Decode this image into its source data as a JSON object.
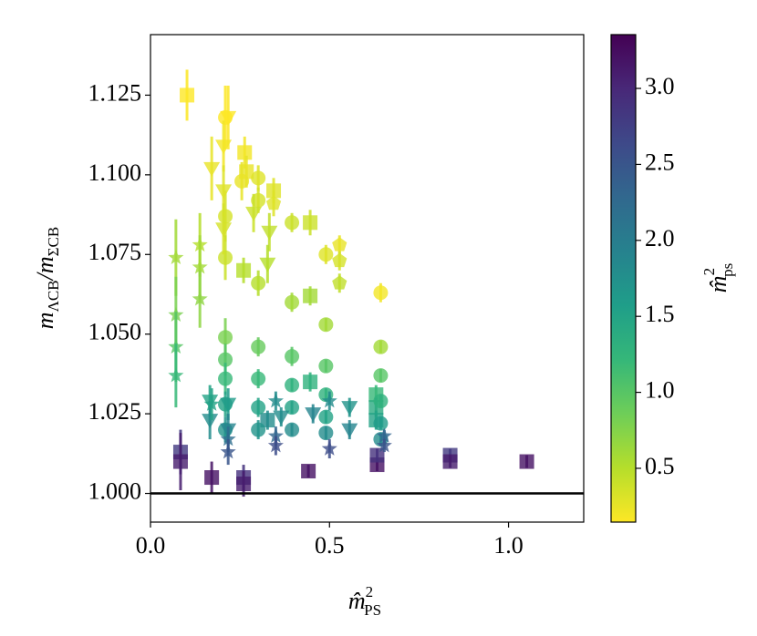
{
  "chart_data": {
    "type": "scatter",
    "xlabel": [
      "m̂",
      "2",
      "PS"
    ],
    "ylabel": [
      "m",
      "ΛCB",
      "/m",
      "ΣCB"
    ],
    "clabel": [
      "m̂",
      "2",
      "ps"
    ],
    "xlim": [
      0,
      1.21
    ],
    "xticks": [
      {
        "value": 0,
        "label": "0.0"
      },
      0.5,
      {
        "value": 1,
        "label": "1.0"
      }
    ],
    "ylim": [
      0.991,
      1.144
    ],
    "yticks": [
      {
        "value": 1,
        "label": "1.000"
      },
      1.025,
      {
        "value": 1.05,
        "label": "1.050"
      },
      1.075,
      {
        "value": 1.1,
        "label": "1.100"
      },
      1.125
    ],
    "clim": [
      0.146,
      3.354
    ],
    "cticks": [
      0.5,
      {
        "value": 1,
        "label": "1.0"
      },
      1.5,
      {
        "value": 2,
        "label": "2.0"
      },
      2.5,
      {
        "value": 3,
        "label": "3.0"
      }
    ],
    "colormap": [
      "#fde725",
      "#b5de2b",
      "#6ece58",
      "#35b779",
      "#1f9e89",
      "#26828e",
      "#31688e",
      "#3e4989",
      "#482878",
      "#440154"
    ],
    "hline": 1,
    "hline_color": "#000000",
    "series": [
      {
        "marker": "square",
        "x": [
          0.102,
          0.263,
          0.268,
          0.344,
          0.446,
          0.446,
          0.26,
          0.446,
          0.63,
          0.63,
          0.63,
          0.327,
          0.084,
          0.084,
          0.171,
          0.26,
          0.26,
          0.441,
          0.633,
          0.633,
          0.837,
          0.837,
          1.051
        ],
        "values": [
          1.125,
          1.107,
          1.101,
          1.095,
          1.085,
          1.062,
          1.07,
          1.035,
          1.031,
          1.027,
          1.023,
          1.023,
          1.013,
          1.01,
          1.005,
          1.005,
          1.003,
          1.007,
          1.009,
          1.012,
          1.012,
          1.01,
          1.01
        ],
        "errors": [
          0.008,
          0.005,
          0.005,
          0.004,
          0.004,
          0.003,
          0.004,
          0.003,
          0.003,
          0.003,
          0.003,
          0.003,
          0.007,
          0.009,
          0.005,
          0.004,
          0.004,
          0.002,
          0.002,
          0.002,
          0.002,
          0.002,
          0.002
        ],
        "colors": [
          0.15,
          0.2,
          0.25,
          0.3,
          0.4,
          0.6,
          0.5,
          1.3,
          1.2,
          1.4,
          1.5,
          1.8,
          2.8,
          3.1,
          3.2,
          2.9,
          3.1,
          3.2,
          3.2,
          2.9,
          2.8,
          3.1,
          3.2
        ]
      },
      {
        "marker": "circle",
        "x": [
          0.209,
          0.209,
          0.209,
          0.209,
          0.209,
          0.209,
          0.209,
          0.209,
          0.255,
          0.301,
          0.301,
          0.301,
          0.301,
          0.301,
          0.301,
          0.301,
          0.395,
          0.395,
          0.395,
          0.395,
          0.395,
          0.395,
          0.49,
          0.49,
          0.49,
          0.49,
          0.49,
          0.49,
          0.643,
          0.643,
          0.643,
          0.643,
          0.643,
          0.643
        ],
        "values": [
          1.118,
          1.087,
          1.074,
          1.049,
          1.042,
          1.036,
          1.028,
          1.02,
          1.098,
          1.099,
          1.092,
          1.066,
          1.046,
          1.036,
          1.027,
          1.02,
          1.085,
          1.06,
          1.043,
          1.034,
          1.027,
          1.02,
          1.075,
          1.053,
          1.04,
          1.031,
          1.024,
          1.019,
          1.063,
          1.046,
          1.037,
          1.029,
          1.022,
          1.017
        ],
        "errors": [
          0.01,
          0.008,
          0.007,
          0.006,
          0.005,
          0.005,
          0.004,
          0.004,
          0.006,
          0.004,
          0.004,
          0.004,
          0.003,
          0.003,
          0.003,
          0.003,
          0.003,
          0.003,
          0.003,
          0.002,
          0.002,
          0.002,
          0.003,
          0.002,
          0.002,
          0.002,
          0.002,
          0.002,
          0.003,
          0.002,
          0.002,
          0.002,
          0.002,
          0.002
        ],
        "colors": [
          0.15,
          0.35,
          0.4,
          0.8,
          1.0,
          1.2,
          1.5,
          1.7,
          0.25,
          0.3,
          0.35,
          0.5,
          0.9,
          1.2,
          1.5,
          1.7,
          0.4,
          0.6,
          1.0,
          1.3,
          1.5,
          1.8,
          0.3,
          0.6,
          1.0,
          1.3,
          1.5,
          1.8,
          0.2,
          0.6,
          1.0,
          1.3,
          1.6,
          1.8
        ]
      },
      {
        "marker": "triangle",
        "x": [
          0.217,
          0.171,
          0.204,
          0.204,
          0.204,
          0.288,
          0.332,
          0.327,
          0.166,
          0.166,
          0.217,
          0.217,
          0.365,
          0.454,
          0.556,
          0.556
        ],
        "values": [
          1.118,
          1.102,
          1.109,
          1.095,
          1.083,
          1.088,
          1.082,
          1.072,
          1.029,
          1.023,
          1.028,
          1.02,
          1.024,
          1.025,
          1.027,
          1.02
        ],
        "errors": [
          0.01,
          0.01,
          0.008,
          0.008,
          0.008,
          0.006,
          0.006,
          0.006,
          0.005,
          0.006,
          0.005,
          0.005,
          0.003,
          0.003,
          0.003,
          0.003
        ],
        "colors": [
          0.15,
          0.25,
          0.2,
          0.3,
          0.35,
          0.4,
          0.45,
          0.5,
          1.5,
          1.8,
          1.6,
          1.9,
          1.8,
          1.9,
          1.7,
          1.9
        ]
      },
      {
        "marker": "star",
        "x": [
          0.071,
          0.071,
          0.071,
          0.071,
          0.138,
          0.138,
          0.138,
          0.171,
          0.217,
          0.217,
          0.35,
          0.35,
          0.35,
          0.5,
          0.5,
          0.653,
          0.653
        ],
        "values": [
          1.074,
          1.056,
          1.046,
          1.037,
          1.078,
          1.071,
          1.061,
          1.028,
          1.017,
          1.013,
          1.029,
          1.018,
          1.015,
          1.029,
          1.014,
          1.018,
          1.015
        ],
        "errors": [
          0.012,
          0.012,
          0.011,
          0.01,
          0.01,
          0.01,
          0.009,
          0.005,
          0.004,
          0.004,
          0.003,
          0.003,
          0.003,
          0.003,
          0.003,
          0.002,
          0.002
        ],
        "colors": [
          0.6,
          0.8,
          1.0,
          1.2,
          0.5,
          0.6,
          0.7,
          1.5,
          2.2,
          2.5,
          1.8,
          2.3,
          2.6,
          1.8,
          2.6,
          2.3,
          2.5
        ]
      },
      {
        "marker": "pentagon",
        "x": [
          0.528,
          0.528,
          0.528,
          0.344
        ],
        "values": [
          1.078,
          1.073,
          1.066,
          1.091
        ],
        "errors": [
          0.003,
          0.003,
          0.003,
          0.004
        ],
        "colors": [
          0.25,
          0.35,
          0.45,
          0.3
        ]
      }
    ]
  }
}
